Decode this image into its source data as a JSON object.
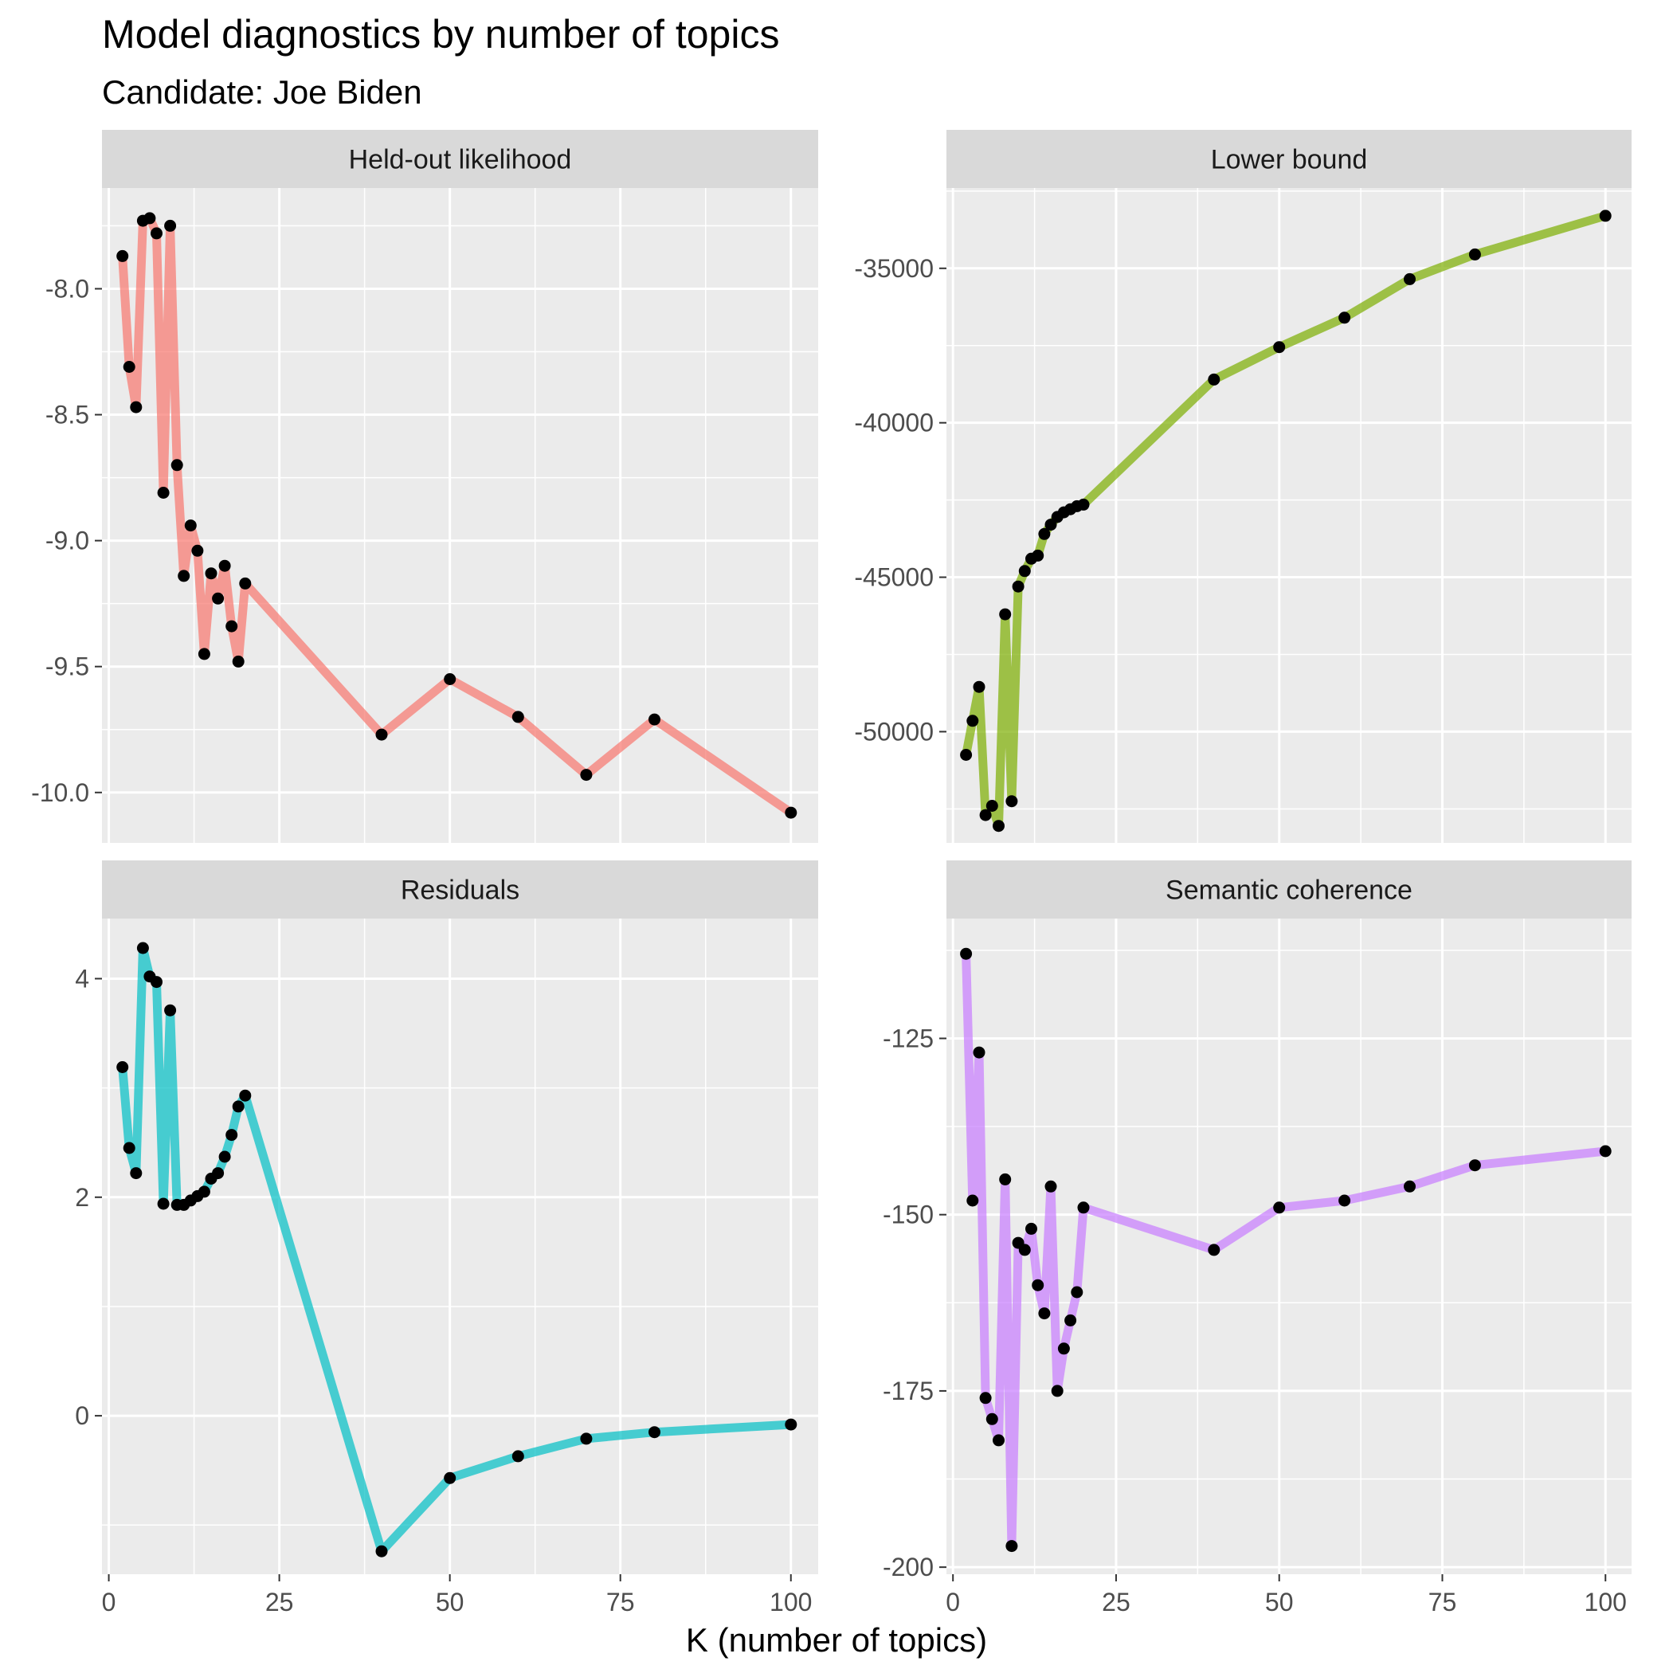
{
  "title": "Model diagnostics by number of topics",
  "subtitle": "Candidate: Joe Biden",
  "chart_data": {
    "type": "line",
    "title": "Model diagnostics by number of topics",
    "subtitle": "Candidate: Joe Biden",
    "xlabel": "K (number of topics)",
    "ylabel": "",
    "x": [
      2,
      3,
      4,
      5,
      6,
      7,
      8,
      9,
      10,
      11,
      12,
      13,
      14,
      15,
      16,
      17,
      18,
      19,
      20,
      40,
      50,
      60,
      70,
      80,
      100
    ],
    "xlim": [
      -1,
      104
    ],
    "xticks": [
      0,
      25,
      50,
      75,
      100
    ],
    "grid": true,
    "legend": "none",
    "point_color": "#000000",
    "panel_bg": "#EBEBEB",
    "strip_bg": "#D9D9D9",
    "facets": [
      {
        "name": "Held-out likelihood",
        "color": "#F8766D",
        "ylim": [
          -10.2,
          -7.6
        ],
        "yticks": [
          -10.0,
          -9.5,
          -9.0,
          -8.5,
          -8.0
        ],
        "ytick_labels": [
          "-10.0",
          "-9.5",
          "-9.0",
          "-8.5",
          "-8.0"
        ],
        "values": [
          -7.87,
          -8.31,
          -8.47,
          -7.73,
          -7.72,
          -7.78,
          -8.81,
          -7.75,
          -8.7,
          -9.14,
          -8.94,
          -9.04,
          -9.45,
          -9.13,
          -9.23,
          -9.1,
          -9.34,
          -9.48,
          -9.17,
          -9.77,
          -9.55,
          -9.7,
          -9.93,
          -9.71,
          -10.08
        ]
      },
      {
        "name": "Lower bound",
        "color": "#7CAE00",
        "ylim": [
          -53600,
          -32400
        ],
        "yticks": [
          -50000,
          -45000,
          -40000,
          -35000
        ],
        "ytick_labels": [
          "-50000",
          "-45000",
          "-40000",
          "-35000"
        ],
        "values": [
          -50750,
          -49650,
          -48550,
          -52700,
          -52400,
          -53050,
          -46200,
          -52250,
          -45300,
          -44800,
          -44400,
          -44300,
          -43600,
          -43300,
          -43050,
          -42900,
          -42800,
          -42700,
          -42650,
          -38600,
          -37550,
          -36600,
          -35350,
          -34550,
          -33300
        ]
      },
      {
        "name": "Residuals",
        "color": "#00BFC4",
        "ylim": [
          -1.45,
          4.55
        ],
        "yticks": [
          0,
          2,
          4
        ],
        "ytick_labels": [
          "0",
          "2",
          "4"
        ],
        "values": [
          3.19,
          2.45,
          2.22,
          4.28,
          4.02,
          3.97,
          1.94,
          3.71,
          1.93,
          1.93,
          1.97,
          2.01,
          2.05,
          2.17,
          2.22,
          2.37,
          2.57,
          2.83,
          2.93,
          -1.24,
          -0.57,
          -0.37,
          -0.21,
          -0.15,
          -0.08
        ]
      },
      {
        "name": "Semantic coherence",
        "color": "#C77CFF",
        "ylim": [
          -201,
          -108
        ],
        "yticks": [
          -200,
          -175,
          -150,
          -125
        ],
        "ytick_labels": [
          "-200",
          "-175",
          "-150",
          "-125"
        ],
        "values": [
          -113,
          -148,
          -127,
          -176,
          -179,
          -182,
          -145,
          -197,
          -154,
          -155,
          -152,
          -160,
          -164,
          -146,
          -175,
          -169,
          -165,
          -161,
          -149,
          -155,
          -149,
          -148,
          -146,
          -143,
          -141
        ]
      }
    ]
  }
}
